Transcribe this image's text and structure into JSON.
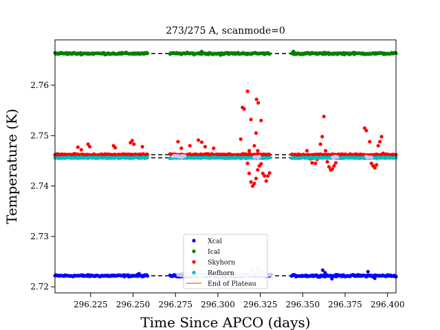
{
  "chart_data": {
    "type": "scatter",
    "title": "273/275 A, scanmode=0",
    "xlabel": "Time Since APCO (days)",
    "ylabel": "Temperature (K)",
    "xlim": [
      296.204,
      296.405
    ],
    "ylim": [
      2.7188,
      2.769
    ],
    "xticks": [
      296.225,
      296.25,
      296.275,
      296.3,
      296.325,
      296.35,
      296.375,
      296.4
    ],
    "xtick_labels": [
      "296.225",
      "296.250",
      "296.275",
      "296.300",
      "296.325",
      "296.350",
      "296.375",
      "296.400"
    ],
    "yticks": [
      2.72,
      2.73,
      2.74,
      2.75,
      2.76
    ],
    "ytick_labels": [
      "2.72",
      "2.73",
      "2.74",
      "2.75",
      "2.76"
    ],
    "grid": false,
    "legend_position": "bottom-center",
    "plateau_segments": [
      {
        "x": [
          296.204,
          296.2585
        ]
      },
      {
        "x": [
          296.2718,
          296.3305
        ]
      },
      {
        "x": [
          296.3435,
          296.405
        ]
      }
    ],
    "series": [
      {
        "name": "Xcal",
        "color": "#0000ff",
        "base": 2.7222,
        "points": [
          [
            296.3618,
            2.7233
          ],
          [
            296.3632,
            2.7228
          ],
          [
            296.3885,
            2.723
          ],
          [
            296.3672,
            2.7216
          ],
          [
            296.3925,
            2.7217
          ],
          [
            296.2535,
            2.7226
          ]
        ]
      },
      {
        "name": "Ical",
        "color": "#008000",
        "base": 2.7663,
        "points": [
          [
            296.2905,
            2.7667
          ],
          [
            296.3015,
            2.766
          ],
          [
            296.3445,
            2.7667
          ]
        ]
      },
      {
        "name": "Skyhorn",
        "color": "#ff0000",
        "base": 2.7462,
        "points": [
          [
            296.2175,
            2.7477
          ],
          [
            296.2195,
            2.7472
          ],
          [
            296.2235,
            2.7483
          ],
          [
            296.2245,
            2.7478
          ],
          [
            296.2385,
            2.748
          ],
          [
            296.2395,
            2.7476
          ],
          [
            296.2485,
            2.7486
          ],
          [
            296.2495,
            2.749
          ],
          [
            296.2505,
            2.7483
          ],
          [
            296.2555,
            2.7478
          ],
          [
            296.2765,
            2.7488
          ],
          [
            296.2785,
            2.7475
          ],
          [
            296.2835,
            2.748
          ],
          [
            296.2885,
            2.7491
          ],
          [
            296.2905,
            2.7487
          ],
          [
            296.2925,
            2.7478
          ],
          [
            296.2975,
            2.7475
          ],
          [
            296.3175,
            2.7588
          ],
          [
            296.3145,
            2.7556
          ],
          [
            296.3155,
            2.7553
          ],
          [
            296.3228,
            2.7572
          ],
          [
            296.3238,
            2.7565
          ],
          [
            296.3195,
            2.7532
          ],
          [
            296.3225,
            2.7505
          ],
          [
            296.3255,
            2.753
          ],
          [
            296.3135,
            2.7493
          ],
          [
            296.3185,
            2.747
          ],
          [
            296.3195,
            2.7458
          ],
          [
            296.3215,
            2.748
          ],
          [
            296.3165,
            2.7455
          ],
          [
            296.3175,
            2.7445
          ],
          [
            296.3185,
            2.7425
          ],
          [
            296.3195,
            2.7408
          ],
          [
            296.3205,
            2.74
          ],
          [
            296.3215,
            2.7405
          ],
          [
            296.3225,
            2.7415
          ],
          [
            296.3235,
            2.7432
          ],
          [
            296.3245,
            2.744
          ],
          [
            296.3255,
            2.7444
          ],
          [
            296.3265,
            2.7425
          ],
          [
            296.3275,
            2.742
          ],
          [
            296.3285,
            2.741
          ],
          [
            296.3295,
            2.742
          ],
          [
            296.3305,
            2.7426
          ],
          [
            296.3235,
            2.747
          ],
          [
            296.3525,
            2.747
          ],
          [
            296.3545,
            2.7454
          ],
          [
            296.3555,
            2.7446
          ],
          [
            296.3575,
            2.7445
          ],
          [
            296.3585,
            2.7453
          ],
          [
            296.3605,
            2.7483
          ],
          [
            296.3615,
            2.7498
          ],
          [
            296.3625,
            2.7538
          ],
          [
            296.3635,
            2.747
          ],
          [
            296.3645,
            2.7448
          ],
          [
            296.3655,
            2.7438
          ],
          [
            296.3665,
            2.7432
          ],
          [
            296.3675,
            2.7434
          ],
          [
            296.3685,
            2.744
          ],
          [
            296.3695,
            2.7446
          ],
          [
            296.3705,
            2.7455
          ],
          [
            296.3865,
            2.7515
          ],
          [
            296.3875,
            2.751
          ],
          [
            296.3895,
            2.7488
          ],
          [
            296.3905,
            2.7445
          ],
          [
            296.3915,
            2.744
          ],
          [
            296.3925,
            2.7436
          ],
          [
            296.3935,
            2.7442
          ],
          [
            296.3945,
            2.748
          ],
          [
            296.3955,
            2.7488
          ],
          [
            296.3965,
            2.7498
          ],
          [
            296.3975,
            2.7465
          ]
        ]
      },
      {
        "name": "Refhorn",
        "color": "#00bfbf",
        "base": 2.7456,
        "points": []
      }
    ],
    "overlay_series": [
      {
        "color": "#c8c8f0",
        "base": 2.7224,
        "x": [
          296.2765,
          296.3315
        ],
        "points": [
          [
            296.2825,
            2.7228
          ],
          [
            296.2905,
            2.722
          ],
          [
            296.3085,
            2.7224
          ],
          [
            296.3205,
            2.7232
          ],
          [
            296.3235,
            2.7237
          ],
          [
            296.3245,
            2.7232
          ],
          [
            296.3265,
            2.7228
          ]
        ]
      },
      {
        "color": "#c8c8f0",
        "base": 2.7459,
        "x": [
          296.2735,
          296.2805
        ],
        "points": []
      },
      {
        "color": "#c8c8f0",
        "base": 2.7457,
        "x": [
          296.3215,
          296.3245
        ],
        "points": []
      },
      {
        "color": "#c8c8f0",
        "base": 2.7458,
        "x": [
          296.3675,
          296.3705
        ],
        "points": []
      },
      {
        "color": "#c8c8f0",
        "base": 2.7457,
        "x": [
          296.3875,
          296.3905
        ],
        "points": []
      }
    ],
    "legend": [
      {
        "label": "Xcal",
        "marker": "dot",
        "color": "#0000ff"
      },
      {
        "label": "Ical",
        "marker": "dot",
        "color": "#008000"
      },
      {
        "label": "Skyhorn",
        "marker": "dot",
        "color": "#ff0000"
      },
      {
        "label": "Refhorn",
        "marker": "dot",
        "color": "#00bfbf"
      },
      {
        "label": "End of Plateau",
        "marker": "line",
        "color": "#ff7f0e"
      }
    ]
  }
}
